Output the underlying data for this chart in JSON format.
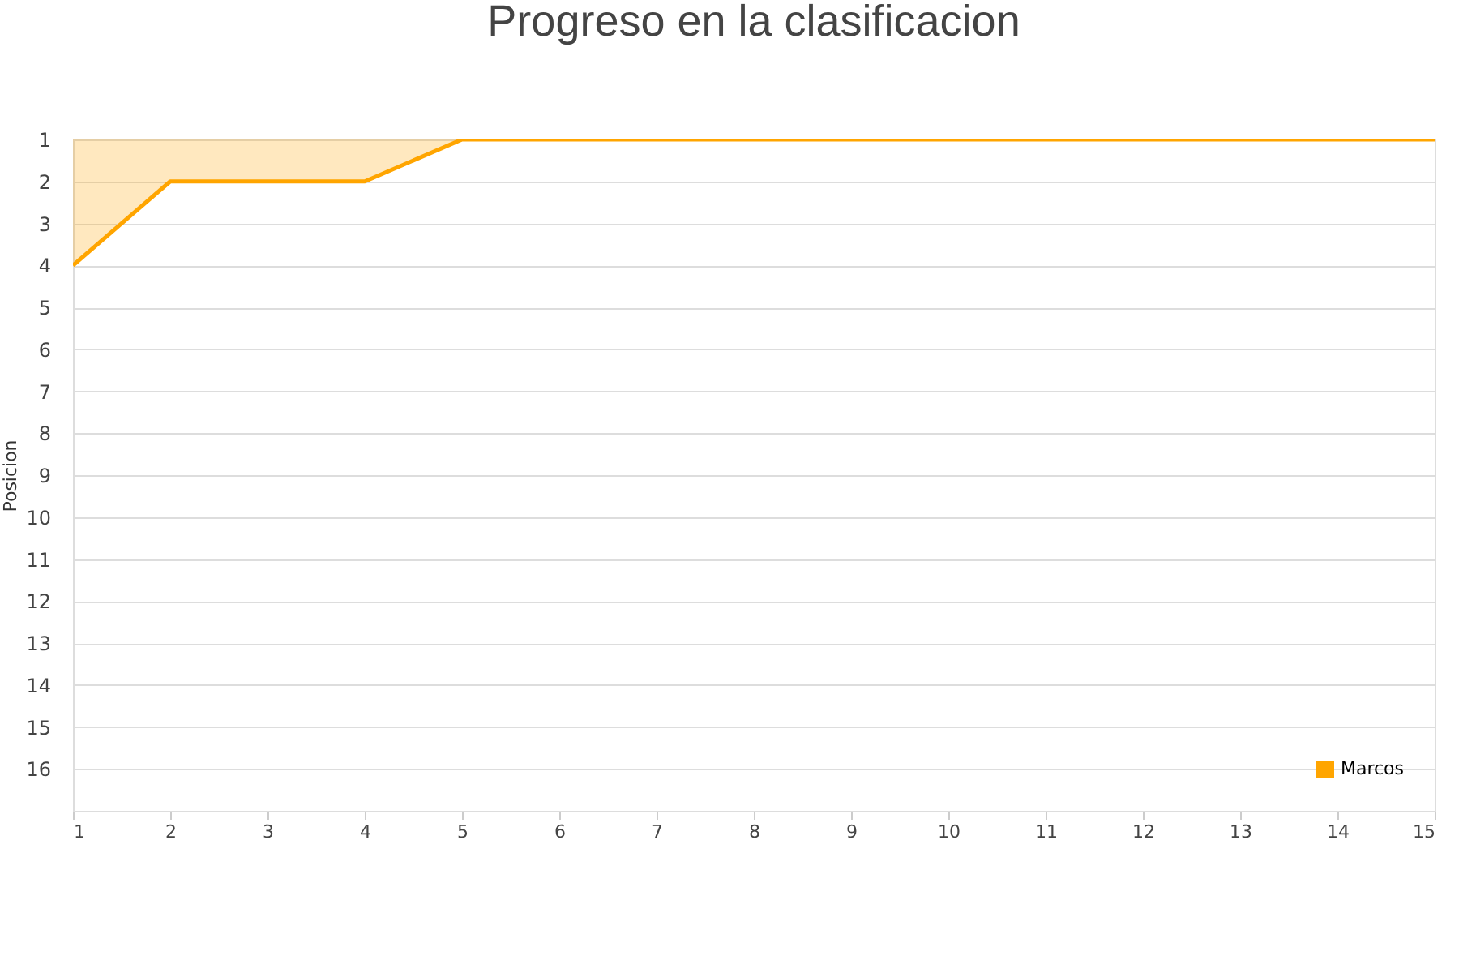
{
  "chart_data": {
    "type": "area",
    "title": "Progreso en la clasificacion",
    "ylabel": "Posicion",
    "x": [
      1,
      2,
      3,
      4,
      5,
      6,
      7,
      8,
      9,
      10,
      11,
      12,
      13,
      14,
      15
    ],
    "series": [
      {
        "name": "Marcos",
        "color": "#ffa500",
        "values": [
          4,
          2,
          2,
          2,
          1,
          1,
          1,
          1,
          1,
          1,
          1,
          1,
          1,
          1,
          1
        ]
      }
    ],
    "xlim": [
      1,
      15
    ],
    "xticks": [
      1,
      2,
      3,
      4,
      5,
      6,
      7,
      8,
      9,
      10,
      11,
      12,
      13,
      14,
      15
    ],
    "ylim": [
      17,
      1
    ],
    "yticks": [
      1,
      2,
      3,
      4,
      5,
      6,
      7,
      8,
      9,
      10,
      11,
      12,
      13,
      14,
      15,
      16
    ],
    "grid": "y",
    "legend": "bottom right"
  }
}
